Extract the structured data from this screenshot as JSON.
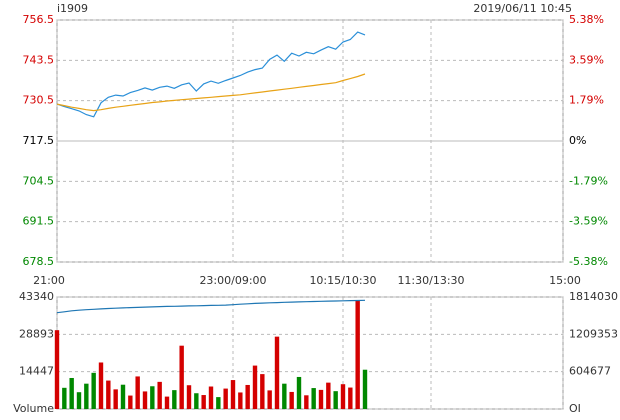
{
  "header": {
    "symbol": "i1909",
    "datetime": "2019/06/11 10:45"
  },
  "chart_data": [
    {
      "type": "line",
      "x": [
        "21:00",
        "21:05",
        "21:10",
        "21:15",
        "21:20",
        "21:25",
        "21:30",
        "21:35",
        "21:40",
        "21:45",
        "21:50",
        "21:55",
        "22:00",
        "22:05",
        "22:10",
        "22:15",
        "22:20",
        "22:25",
        "22:30",
        "22:35",
        "22:40",
        "22:45",
        "22:50",
        "22:55",
        "09:00",
        "09:05",
        "09:10",
        "09:15",
        "09:20",
        "09:25",
        "09:30",
        "09:35",
        "09:40",
        "09:45",
        "09:50",
        "09:55",
        "10:00",
        "10:05",
        "10:10",
        "10:30",
        "10:35",
        "10:40",
        "10:45"
      ],
      "series": [
        {
          "color": "#2a8fd8",
          "values": [
            729.4,
            728.6,
            727.9,
            727.2,
            726.0,
            725.3,
            729.8,
            731.6,
            732.3,
            732.0,
            733.1,
            733.8,
            734.6,
            733.9,
            734.8,
            735.2,
            734.5,
            735.6,
            736.2,
            733.6,
            735.9,
            736.8,
            736.1,
            737.0,
            737.8,
            738.6,
            739.7,
            740.5,
            741.0,
            743.8,
            745.2,
            743.2,
            745.8,
            744.9,
            746.1,
            745.6,
            746.8,
            747.9,
            747.1,
            749.4,
            750.2,
            752.6,
            751.7
          ]
        },
        {
          "color": "#e8a317",
          "values": [
            729.4,
            728.9,
            728.4,
            728.0,
            727.6,
            727.3,
            727.6,
            728.0,
            728.4,
            728.7,
            729.0,
            729.3,
            729.6,
            729.9,
            730.1,
            730.4,
            730.6,
            730.8,
            731.0,
            731.2,
            731.4,
            731.6,
            731.8,
            732.0,
            732.2,
            732.4,
            732.7,
            733.0,
            733.3,
            733.6,
            733.9,
            734.2,
            734.5,
            734.8,
            735.1,
            735.4,
            735.7,
            736.0,
            736.3,
            737.0,
            737.6,
            738.3,
            739.1
          ]
        }
      ],
      "ylim": [
        678.5,
        756.5
      ],
      "yticks": [
        678.5,
        691.5,
        704.5,
        717.5,
        730.5,
        743.5,
        756.5
      ],
      "y2lim": [
        -5.38,
        5.38
      ],
      "y2ticks": [
        {
          "value": -5.38,
          "label": "-5.38%"
        },
        {
          "value": -3.59,
          "label": "-3.59%"
        },
        {
          "value": -1.79,
          "label": "-1.79%"
        },
        {
          "value": 0,
          "label": "0%"
        },
        {
          "value": 1.79,
          "label": "1.79%"
        },
        {
          "value": 3.59,
          "label": "3.59%"
        },
        {
          "value": 5.38,
          "label": "5.38%"
        }
      ],
      "xticks": [
        "21:00",
        "23:00/09:00",
        "10:15/10:30",
        "11:30/13:30",
        "15:00"
      ],
      "grid": true,
      "up_color": "#d40000",
      "down_color": "#008800"
    },
    {
      "type": "bar",
      "series": [
        {
          "values": [
            30500,
            8200,
            12000,
            6500,
            9800,
            14000,
            18000,
            11000,
            7600,
            9400,
            5200,
            12600,
            6800,
            8800,
            10500,
            4800,
            7300,
            24500,
            9200,
            6100,
            5400,
            8700,
            4600,
            7900,
            11200,
            6400,
            9300,
            16800,
            13500,
            7200,
            28000,
            9800,
            6600,
            12400,
            5300,
            8100,
            7400,
            10200,
            6900,
            9600,
            8300,
            42000,
            15200
          ]
        },
        {
          "axis": "y2",
          "color": "#1f77b4",
          "values": [
            1560000,
            1575000,
            1590000,
            1600000,
            1608000,
            1615000,
            1622000,
            1628000,
            1633000,
            1638000,
            1642000,
            1646000,
            1650000,
            1654000,
            1658000,
            1661000,
            1664000,
            1667000,
            1670000,
            1672000,
            1675000,
            1678000,
            1680000,
            1683000,
            1690000,
            1698000,
            1704000,
            1710000,
            1715000,
            1720000,
            1724000,
            1728000,
            1731000,
            1735000,
            1738000,
            1741000,
            1744000,
            1747000,
            1750000,
            1753000,
            1756000,
            1758000,
            1760000
          ]
        }
      ],
      "ylim": [
        0,
        43340
      ],
      "yticks": [
        {
          "value": 0,
          "label": "Volume"
        },
        14447,
        28893,
        43340
      ],
      "y2lim": [
        0,
        1814030
      ],
      "y2ticks": [
        {
          "value": 0,
          "label": "OI"
        },
        604677,
        1209353,
        1814030
      ],
      "grid": true
    }
  ]
}
